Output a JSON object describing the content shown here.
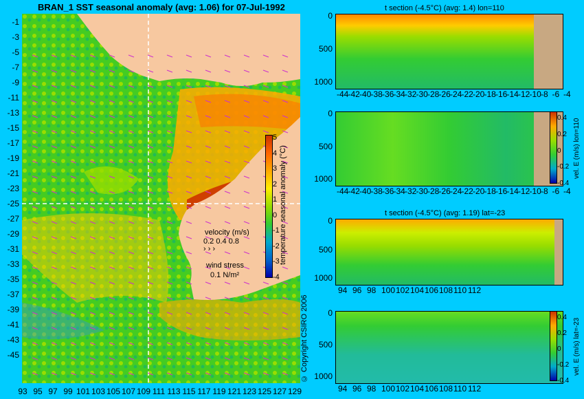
{
  "main_map": {
    "title": "BRAN_1  SST seasonal anomaly  (avg: 1.06)  for 07-Jul-1992",
    "lat_ticks": [
      "-1",
      "-3",
      "-5",
      "-7",
      "-9",
      "-11",
      "-13",
      "-15",
      "-17",
      "-19",
      "-21",
      "-23",
      "-25",
      "-27",
      "-29",
      "-31",
      "-33",
      "-35",
      "-37",
      "-39",
      "-41",
      "-43",
      "-45"
    ],
    "lon_ticks": [
      "93",
      "95",
      "97",
      "99",
      "101",
      "103",
      "105",
      "107",
      "109",
      "111",
      "113",
      "115",
      "117",
      "119",
      "121",
      "123",
      "125",
      "127",
      "129"
    ],
    "colorbar_ticks": [
      "5",
      "4",
      "3",
      "2",
      "1",
      "0",
      "-1",
      "-2",
      "-3",
      "-4"
    ],
    "colorbar_label": "temperature seasonal anomaly (°C)",
    "velocity_legend": {
      "title": "velocity (m/s)",
      "values": "0.2 0.4 0.8"
    },
    "wind_legend": {
      "title": "wind stress",
      "value": "0.1 N/m²"
    },
    "copyright": "© Copyright CSIRO 2006"
  },
  "panels": [
    {
      "title": "t section (-4.5°C) (avg: 1.4) lon=110",
      "y_ticks": [
        "0",
        "500",
        "1000"
      ],
      "x_ticks": [
        "-44",
        "-42",
        "-40",
        "-38",
        "-36",
        "-34",
        "-32",
        "-30",
        "-28",
        "-26",
        "-24",
        "-22",
        "-20",
        "-18",
        "-16",
        "-14",
        "-12",
        "-10",
        "-8",
        "-6",
        "-4"
      ]
    },
    {
      "title": "",
      "colorbar_label": "vel. E (m/s) lon=110",
      "colorbar_ticks": [
        "0.4",
        "0.2",
        "0",
        "-0.2",
        "-0.4"
      ],
      "y_ticks": [
        "0",
        "500",
        "1000"
      ],
      "x_ticks": [
        "-44",
        "-42",
        "-40",
        "-38",
        "-36",
        "-34",
        "-32",
        "-30",
        "-28",
        "-26",
        "-24",
        "-22",
        "-20",
        "-18",
        "-16",
        "-14",
        "-12",
        "-10",
        "-8",
        "-6",
        "-4"
      ]
    },
    {
      "title": "t section (-4.5°C) (avg: 1.19) lat=-23",
      "y_ticks": [
        "0",
        "500",
        "1000"
      ],
      "x_ticks": [
        "94",
        "96",
        "98",
        "100",
        "102",
        "104",
        "106",
        "108",
        "110",
        "112"
      ]
    },
    {
      "title": "",
      "colorbar_label": "vel. E (m/s) lat=-23",
      "colorbar_ticks": [
        "0.4",
        "0.2",
        "0",
        "-0.2",
        "-0.4"
      ],
      "y_ticks": [
        "0",
        "500",
        "1000"
      ],
      "x_ticks": [
        "94",
        "96",
        "98",
        "100",
        "102",
        "104",
        "106",
        "108",
        "110",
        "112"
      ]
    }
  ],
  "colors": {
    "background": "#00ccff",
    "land": "#f7c8a0",
    "land_section": "#c8a882",
    "ocean_base": "#33cc33",
    "warm": "#ff9900",
    "hot": "#cc3300",
    "cool": "#00aacc",
    "arrow": "#cc33cc"
  }
}
